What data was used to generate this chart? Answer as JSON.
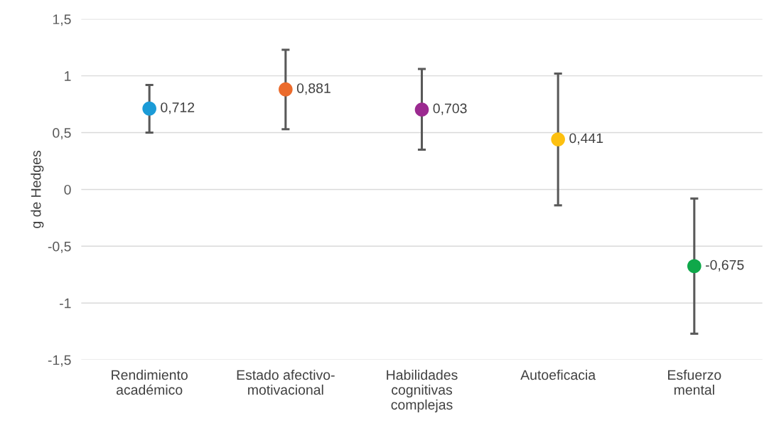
{
  "chart_data": {
    "type": "scatter",
    "ylabel": "g de Hedges",
    "categories": [
      "Rendimiento\nacadémico",
      "Estado afectivo-\nmotivacional",
      "Habilidades\ncognitivas\ncomplejas",
      "Autoeficacia",
      "Esfuerzo\nmental"
    ],
    "values": [
      0.712,
      0.881,
      0.703,
      0.441,
      -0.675
    ],
    "value_labels": [
      "0,712",
      "0,881",
      "0,703",
      "0,441",
      "-0,675"
    ],
    "colors": [
      "#1b9bd7",
      "#eb6b2c",
      "#9b2a90",
      "#fdc010",
      "#0fa84a"
    ],
    "errors": [
      [
        0.5,
        0.92
      ],
      [
        0.53,
        1.23
      ],
      [
        0.35,
        1.06
      ],
      [
        -0.14,
        1.02
      ],
      [
        -1.27,
        -0.08
      ]
    ],
    "ylim": [
      -1.5,
      1.5
    ],
    "yticks": [
      {
        "value": -1.5,
        "label": "-1,5"
      },
      {
        "value": -1,
        "label": "-1"
      },
      {
        "value": -0.5,
        "label": "-0,5"
      },
      0,
      {
        "value": 0.5,
        "label": "0,5"
      },
      1,
      {
        "value": 1.5,
        "label": "1,5"
      }
    ],
    "grid": "y",
    "marker": "circle",
    "legend": false
  }
}
